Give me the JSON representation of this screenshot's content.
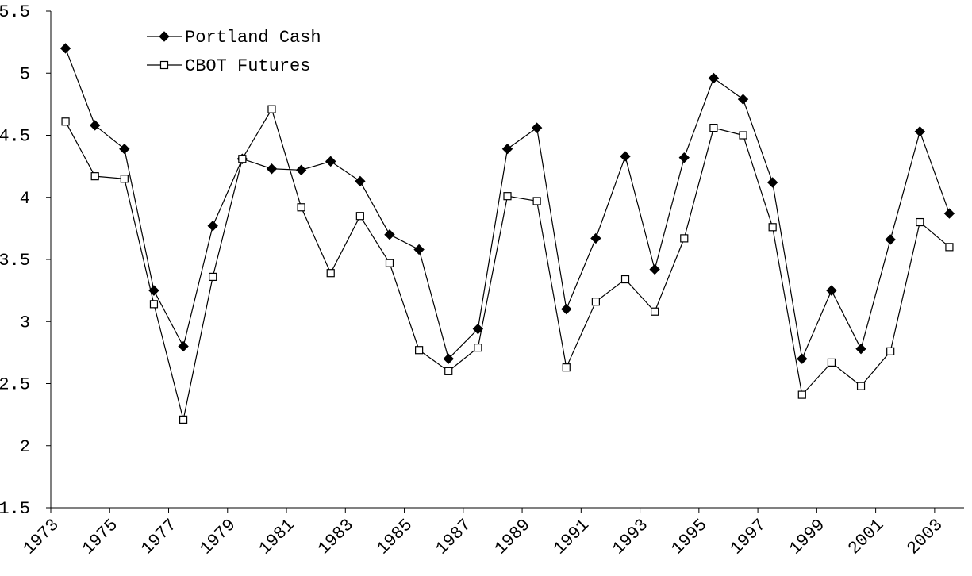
{
  "chart_data": {
    "type": "line",
    "categories": [
      "1973",
      null,
      "1975",
      null,
      "1977",
      null,
      "1979",
      null,
      "1981",
      null,
      "1983",
      null,
      "1985",
      null,
      "1987",
      null,
      "1989",
      null,
      "1991",
      null,
      "1993",
      null,
      "1995",
      null,
      "1997",
      null,
      "1999",
      null,
      "2001",
      null,
      "2003"
    ],
    "series": [
      {
        "name": "Portland Cash",
        "color": "#000000",
        "marker": "diamond",
        "values": [
          5.2,
          4.58,
          4.39,
          3.25,
          2.8,
          3.77,
          4.31,
          4.23,
          4.22,
          4.29,
          4.13,
          3.7,
          3.58,
          2.7,
          2.94,
          4.39,
          4.56,
          3.1,
          3.67,
          4.33,
          3.42,
          4.32,
          4.96,
          4.79,
          4.12,
          2.7,
          3.25,
          2.78,
          3.66,
          4.53,
          3.87
        ]
      },
      {
        "name": "CBOT Futures",
        "color": "#000000",
        "marker": "square",
        "values": [
          4.61,
          4.17,
          4.15,
          3.14,
          2.21,
          3.36,
          4.31,
          4.71,
          3.92,
          3.39,
          3.85,
          3.47,
          2.77,
          2.6,
          2.79,
          4.01,
          3.97,
          2.63,
          3.16,
          3.34,
          3.08,
          3.67,
          4.56,
          4.5,
          3.76,
          2.41,
          2.67,
          2.48,
          2.76,
          3.8,
          3.6
        ]
      }
    ],
    "ylim": [
      1.5,
      5.5
    ],
    "yticks": [
      1.5,
      2,
      2.5,
      3,
      3.5,
      4,
      4.5,
      5,
      5.5
    ],
    "grid": false,
    "legend": "upper left"
  }
}
